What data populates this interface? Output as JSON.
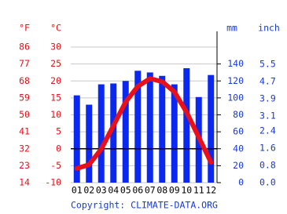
{
  "chart_data": {
    "type": "climate",
    "categories": [
      "01",
      "02",
      "03",
      "04",
      "05",
      "06",
      "07",
      "08",
      "09",
      "10",
      "11",
      "12"
    ],
    "ylabel": "°C",
    "ylim": [
      -10,
      30
    ],
    "yticks": [
      -10,
      -5,
      0,
      5,
      10,
      15,
      20,
      25,
      30
    ],
    "flabel": "°F",
    "flim": [
      14,
      86
    ],
    "fticks": [
      14,
      23,
      32,
      41,
      50,
      59,
      68,
      77,
      86
    ],
    "y2label": "mm",
    "y2lim": [
      0,
      160
    ],
    "y2ticks": [
      0,
      20,
      40,
      60,
      80,
      100,
      120,
      140
    ],
    "inchlabel": "inch",
    "inchlim": [
      0,
      6.299
    ],
    "inchticks": [
      {
        "value": 0,
        "label": "0.0"
      },
      {
        "value": 0.8,
        "label": "0.8"
      },
      {
        "value": 1.6,
        "label": "1.6"
      },
      {
        "value": 2.4,
        "label": "2.4"
      },
      {
        "value": 3.1,
        "label": "3.1"
      },
      {
        "value": 3.9,
        "label": "3.9"
      },
      {
        "value": 4.7,
        "label": "4.7"
      },
      {
        "value": 5.5,
        "label": "5.5"
      }
    ],
    "grid": true,
    "series": [
      {
        "type": "bar",
        "axis": "y2",
        "color": "#0a28f0",
        "values": [
          103,
          92,
          116,
          117,
          120,
          132,
          130,
          126,
          116,
          135,
          101,
          127
        ]
      },
      {
        "type": "line",
        "color": "#e8101a",
        "values": [
          -5.8,
          -4.7,
          -0.1,
          6.8,
          13.8,
          18.4,
          20.7,
          19.8,
          16.8,
          10.8,
          3.4,
          -4.0
        ]
      }
    ],
    "credit": "Copyright: CLIMATE-DATA.ORG"
  }
}
